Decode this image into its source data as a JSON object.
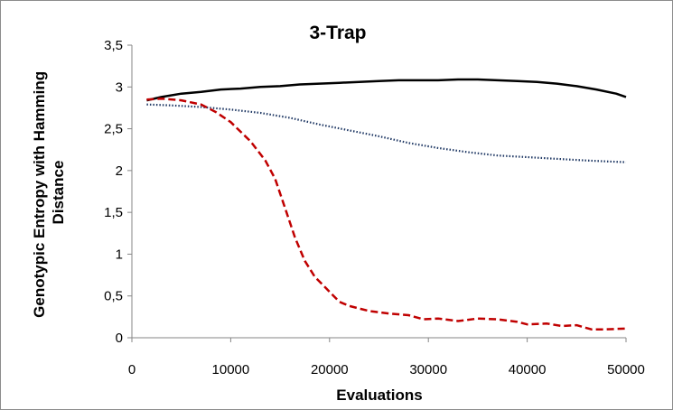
{
  "chart_data": {
    "type": "line",
    "title": "3-Trap",
    "xlabel": "Evaluations",
    "ylabel": "Genotypic Entropy with Hamming Distance",
    "xlim": [
      0,
      50000
    ],
    "ylim": [
      0,
      3.5
    ],
    "x_ticks": [
      "0",
      "10000",
      "20000",
      "30000",
      "40000",
      "50000"
    ],
    "y_ticks": [
      "0",
      "0,5",
      "1",
      "1,5",
      "2",
      "2,5",
      "3",
      "3,5"
    ],
    "grid": false,
    "legend": "none",
    "series": [
      {
        "style": "solid",
        "color": "#000000",
        "points": [
          [
            1500,
            2.84
          ],
          [
            3000,
            2.88
          ],
          [
            5000,
            2.92
          ],
          [
            7000,
            2.94
          ],
          [
            9000,
            2.97
          ],
          [
            11000,
            2.98
          ],
          [
            13000,
            3.0
          ],
          [
            15000,
            3.01
          ],
          [
            17000,
            3.03
          ],
          [
            19000,
            3.04
          ],
          [
            21000,
            3.05
          ],
          [
            23000,
            3.06
          ],
          [
            25000,
            3.07
          ],
          [
            27000,
            3.08
          ],
          [
            29000,
            3.08
          ],
          [
            31000,
            3.08
          ],
          [
            33000,
            3.09
          ],
          [
            35000,
            3.09
          ],
          [
            37000,
            3.08
          ],
          [
            39000,
            3.07
          ],
          [
            41000,
            3.06
          ],
          [
            43000,
            3.04
          ],
          [
            45000,
            3.01
          ],
          [
            47000,
            2.97
          ],
          [
            49000,
            2.92
          ],
          [
            50000,
            2.88
          ]
        ]
      },
      {
        "style": "dotted",
        "color": "#1f3864",
        "points": [
          [
            1500,
            2.79
          ],
          [
            4000,
            2.78
          ],
          [
            7000,
            2.76
          ],
          [
            10000,
            2.73
          ],
          [
            13000,
            2.69
          ],
          [
            16000,
            2.63
          ],
          [
            19000,
            2.55
          ],
          [
            22000,
            2.48
          ],
          [
            25000,
            2.41
          ],
          [
            28000,
            2.33
          ],
          [
            31000,
            2.27
          ],
          [
            34000,
            2.22
          ],
          [
            37000,
            2.18
          ],
          [
            40000,
            2.16
          ],
          [
            43000,
            2.14
          ],
          [
            46000,
            2.12
          ],
          [
            48000,
            2.11
          ],
          [
            50000,
            2.1
          ]
        ]
      },
      {
        "style": "dashed",
        "color": "#c00000",
        "points": [
          [
            1500,
            2.85
          ],
          [
            3000,
            2.86
          ],
          [
            5000,
            2.84
          ],
          [
            7000,
            2.79
          ],
          [
            8500,
            2.7
          ],
          [
            10000,
            2.58
          ],
          [
            12000,
            2.35
          ],
          [
            13500,
            2.12
          ],
          [
            14500,
            1.9
          ],
          [
            15500,
            1.55
          ],
          [
            16500,
            1.2
          ],
          [
            17500,
            0.92
          ],
          [
            18500,
            0.73
          ],
          [
            20000,
            0.55
          ],
          [
            21000,
            0.43
          ],
          [
            22000,
            0.38
          ],
          [
            24000,
            0.32
          ],
          [
            26000,
            0.29
          ],
          [
            28000,
            0.27
          ],
          [
            29500,
            0.22
          ],
          [
            31000,
            0.23
          ],
          [
            33000,
            0.2
          ],
          [
            35000,
            0.23
          ],
          [
            37000,
            0.22
          ],
          [
            39000,
            0.19
          ],
          [
            40000,
            0.16
          ],
          [
            42000,
            0.17
          ],
          [
            43500,
            0.14
          ],
          [
            45000,
            0.15
          ],
          [
            46500,
            0.1
          ],
          [
            48000,
            0.1
          ],
          [
            50000,
            0.11
          ]
        ]
      }
    ]
  }
}
